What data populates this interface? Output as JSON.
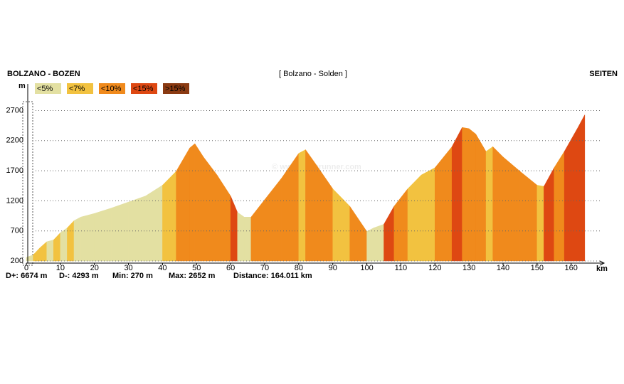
{
  "chart_data": {
    "type": "elevation-profile",
    "title": "[ Bolzano - Solden ]",
    "start_label": "BOLZANO - BOZEN",
    "end_label": "SEITEN",
    "y_unit": "m",
    "x_unit": "km",
    "watermark": "© www.openrunner.com",
    "legend": [
      {
        "label": "<5%",
        "color": "#e3e0a2"
      },
      {
        "label": "<7%",
        "color": "#f2c240"
      },
      {
        "label": "<10%",
        "color": "#f08a1c"
      },
      {
        "label": "<15%",
        "color": "#de4812"
      },
      {
        "label": ">15%",
        "color": "#8a3a12"
      }
    ],
    "stats": [
      "D+: 6674 m",
      "D-: 4293 m",
      "Min: 270 m",
      "Max: 2652 m",
      "Distance: 164.011 km"
    ],
    "x": [
      0,
      2,
      4,
      6,
      8,
      10,
      12,
      14,
      16,
      20,
      25,
      30,
      35,
      40,
      44,
      48,
      49.5,
      52,
      56,
      60,
      62,
      64,
      66,
      70,
      75,
      80,
      82,
      85,
      90,
      95,
      100,
      102,
      105,
      108,
      112,
      116,
      120,
      125,
      128,
      130,
      132,
      135,
      137,
      140,
      145,
      150,
      152,
      155,
      158,
      162,
      164
    ],
    "series": [
      {
        "values": [
          260,
          300,
          420,
          520,
          550,
          670,
          750,
          870,
          930,
          990,
          1080,
          1180,
          1280,
          1460,
          1690,
          2080,
          2150,
          1930,
          1630,
          1280,
          1010,
          930,
          930,
          1220,
          1580,
          1990,
          2050,
          1810,
          1400,
          1110,
          690,
          750,
          810,
          1110,
          1400,
          1630,
          1750,
          2100,
          2420,
          2400,
          2310,
          2020,
          2100,
          1930,
          1690,
          1460,
          1440,
          1750,
          2020,
          2420,
          2630
        ],
        "segment_colors": [
          "#e3e0a2",
          "#f2c240",
          "#f2c240",
          "#e3e0a2",
          "#f2c240",
          "#e3e0a2",
          "#f2c240",
          "#e3e0a2",
          "#e3e0a2",
          "#e3e0a2",
          "#e3e0a2",
          "#e3e0a2",
          "#e3e0a2",
          "#f2c240",
          "#f08a1c",
          "#f08a1c",
          "#f08a1c",
          "#f08a1c",
          "#f08a1c",
          "#de4812",
          "#e3e0a2",
          "#e3e0a2",
          "#f08a1c",
          "#f08a1c",
          "#f08a1c",
          "#f2c240",
          "#f08a1c",
          "#f08a1c",
          "#f2c240",
          "#f08a1c",
          "#e3e0a2",
          "#e3e0a2",
          "#de4812",
          "#f08a1c",
          "#f2c240",
          "#f2c240",
          "#f08a1c",
          "#de4812",
          "#f08a1c",
          "#f08a1c",
          "#f08a1c",
          "#f2c240",
          "#f08a1c",
          "#f08a1c",
          "#f08a1c",
          "#f2c240",
          "#de4812",
          "#f08a1c",
          "#de4812",
          "#de4812"
        ]
      }
    ],
    "xlim": [
      0,
      168
    ],
    "xticks": [
      0,
      10,
      20,
      30,
      40,
      50,
      60,
      70,
      80,
      90,
      100,
      110,
      120,
      130,
      140,
      150,
      160
    ],
    "ylim": [
      200,
      2700
    ],
    "yticks": [
      200,
      700,
      1200,
      1700,
      2200,
      2700
    ],
    "grid": true
  }
}
